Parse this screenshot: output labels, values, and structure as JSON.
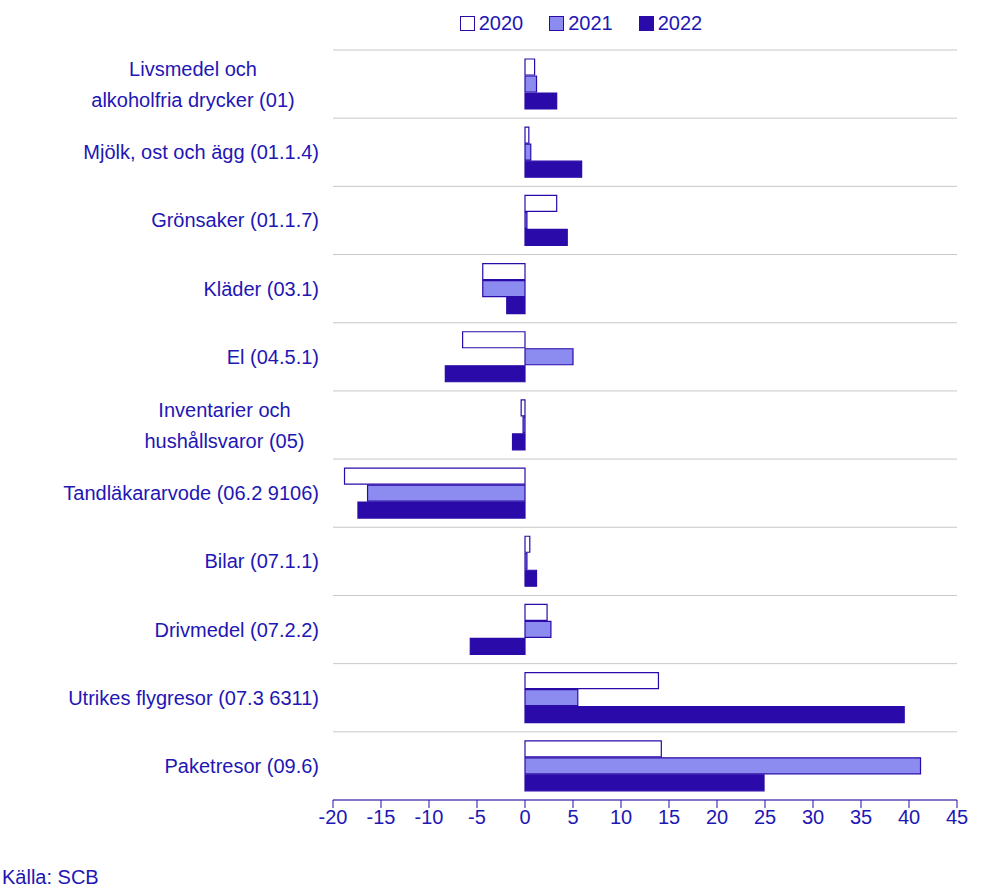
{
  "chart_data": {
    "type": "bar",
    "orientation": "horizontal",
    "source": "Källa: SCB",
    "legend": "top",
    "grid": true,
    "categories": [
      "Livsmedel och\nalkoholfria drycker (01)",
      "Mjölk, ost och ägg (01.1.4)",
      "Grönsaker (01.1.7)",
      "Kläder (03.1)",
      "El (04.5.1)",
      "Inventarier och\nhushållsvaror (05)",
      "Tandläkararvode (06.2 9106)",
      "Bilar (07.1.1)",
      "Drivmedel (07.2.2)",
      "Utrikes flygresor (07.3 6311)",
      "Paketresor (09.6)"
    ],
    "series": [
      {
        "name": "2020",
        "color": "#ffffff",
        "values": [
          1.0,
          0.4,
          3.3,
          -4.4,
          -6.5,
          -0.4,
          -18.8,
          0.5,
          2.3,
          13.9,
          14.2
        ]
      },
      {
        "name": "2021",
        "color": "#8c8cf0",
        "values": [
          1.2,
          0.6,
          0.2,
          -4.4,
          5.0,
          -0.2,
          -16.4,
          0.2,
          2.7,
          5.5,
          41.2
        ]
      },
      {
        "name": "2022",
        "color": "#2a0aa8",
        "values": [
          3.3,
          5.9,
          4.4,
          -1.9,
          -8.3,
          -1.3,
          -17.4,
          1.2,
          -5.7,
          39.5,
          24.9
        ]
      }
    ],
    "xlim": [
      -20,
      45
    ],
    "xticks": [
      -20,
      -15,
      -10,
      -5,
      0,
      5,
      10,
      15,
      20,
      25,
      30,
      35,
      40,
      45
    ]
  }
}
